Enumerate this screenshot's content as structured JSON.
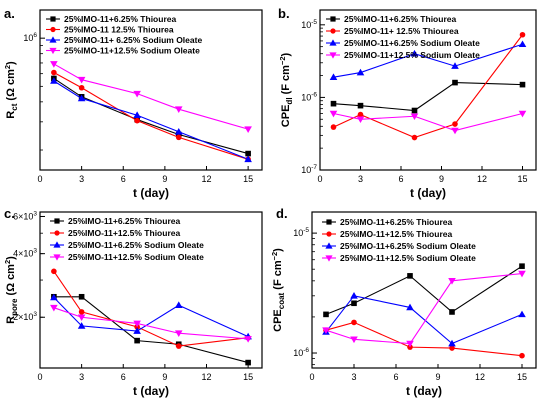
{
  "chart_data": [
    {
      "type": "line",
      "panel_label": "a.",
      "xlabel": "t (day)",
      "ylabel_main": "R",
      "ylabel_sub": "ct",
      "ylabel_rest": " (Ω cm",
      "ylabel_sup": "2",
      "ylabel_end": ")",
      "y_scale": "log",
      "xlim": [
        0,
        16
      ],
      "ylim": [
        150000,
        1500000
      ],
      "x_ticks": [
        0,
        3,
        6,
        9,
        12,
        15
      ],
      "y_tick_labels": [
        {
          "value": 1000000,
          "base": "10",
          "exp": "6"
        }
      ],
      "legend_location": "top-right",
      "series": [
        {
          "name": "25%IMO-11+6.25% Thiourea",
          "color": "#000000",
          "marker": "square",
          "x": [
            1,
            3,
            7,
            10,
            15
          ],
          "y": [
            560000,
            430000,
            310000,
            250000,
            190000
          ]
        },
        {
          "name": "25%IMO-11 12.5% Thiourea",
          "color": "#ff0000",
          "marker": "circle",
          "x": [
            1,
            3,
            7,
            10,
            15
          ],
          "y": [
            610000,
            490000,
            305000,
            240000,
            175000
          ]
        },
        {
          "name": "25%IMO-11+ 6.25% Sodium Oleate",
          "color": "#0000ff",
          "marker": "triangle-up",
          "x": [
            1,
            3,
            7,
            10,
            15
          ],
          "y": [
            540000,
            420000,
            330000,
            260000,
            175000
          ]
        },
        {
          "name": "25%IMO-11+12.5% Sodium Oleate",
          "color": "#ff00ff",
          "marker": "triangle-down",
          "x": [
            1,
            3,
            7,
            10,
            15
          ],
          "y": [
            690000,
            550000,
            450000,
            360000,
            270000
          ]
        }
      ]
    },
    {
      "type": "line",
      "panel_label": "b.",
      "xlabel": "t (day)",
      "ylabel_main": "CPE",
      "ylabel_sub": "dl",
      "ylabel_rest": " (F cm",
      "ylabel_sup": "−2",
      "ylabel_end": ")",
      "y_scale": "log",
      "xlim": [
        0,
        16
      ],
      "ylim": [
        1e-07,
        1.6e-05
      ],
      "x_ticks": [
        0,
        3,
        6,
        9,
        12,
        15
      ],
      "y_tick_labels": [
        {
          "value": 1e-07,
          "base": "10",
          "exp": "-7"
        },
        {
          "value": 1e-06,
          "base": "10",
          "exp": "-6"
        },
        {
          "value": 1e-05,
          "base": "10",
          "exp": "-5"
        }
      ],
      "legend_location": "top-right",
      "series": [
        {
          "name": "25%IMO-11+6.25% Thiourea",
          "color": "#000000",
          "marker": "square",
          "x": [
            1,
            3,
            7,
            10,
            15
          ],
          "y": [
            8.2e-07,
            7.7e-07,
            6.6e-07,
            1.6e-06,
            1.5e-06
          ]
        },
        {
          "name": "25%IMO-11+ 12.5% Thiourea",
          "color": "#ff0000",
          "marker": "circle",
          "x": [
            1,
            3,
            7,
            10,
            15
          ],
          "y": [
            3.9e-07,
            5.8e-07,
            2.8e-07,
            4.3e-07,
            7.3e-06
          ]
        },
        {
          "name": "25%IMO-11+6.25% Sodium Oleate",
          "color": "#0000ff",
          "marker": "triangle-up",
          "x": [
            1,
            3,
            7,
            10,
            15
          ],
          "y": [
            1.9e-06,
            2.2e-06,
            4e-06,
            2.7e-06,
            5.4e-06
          ]
        },
        {
          "name": "25%IMO-11+12.5% Sodium Oleate",
          "color": "#ff00ff",
          "marker": "triangle-down",
          "x": [
            1,
            3,
            7,
            10,
            15
          ],
          "y": [
            6e-07,
            5e-07,
            5.5e-07,
            3.5e-07,
            6e-07
          ]
        }
      ]
    },
    {
      "type": "line",
      "panel_label": "c.",
      "xlabel": "t (day)",
      "ylabel_main": "R",
      "ylabel_sub": "pore",
      "ylabel_rest": " (Ω cm",
      "ylabel_sup": "2",
      "ylabel_end": ")",
      "y_scale": "log",
      "xlim": [
        0,
        16
      ],
      "ylim": [
        1150,
        6300
      ],
      "x_ticks": [
        0,
        3,
        6,
        9,
        12,
        15
      ],
      "y_tick_labels": [
        {
          "value": 2000,
          "base": "2×10",
          "exp": "3"
        },
        {
          "value": 4000,
          "base": "4×10",
          "exp": "3"
        },
        {
          "value": 6000,
          "base": "6×10",
          "exp": "3"
        }
      ],
      "legend_location": "top-right",
      "series": [
        {
          "name": "25%IMO-11+6.25% Thiourea",
          "color": "#000000",
          "marker": "square",
          "x": [
            1,
            3,
            7,
            10,
            15
          ],
          "y": [
            2500,
            2500,
            1550,
            1490,
            1220
          ]
        },
        {
          "name": "25%IMO-11+12.5% Thiourea",
          "color": "#ff0000",
          "marker": "circle",
          "x": [
            1,
            3,
            7,
            10,
            15
          ],
          "y": [
            3300,
            2120,
            1800,
            1460,
            1600
          ]
        },
        {
          "name": "25%IMO-11+6.25% Sodium Oleate",
          "color": "#0000ff",
          "marker": "triangle-up",
          "x": [
            1,
            3,
            7,
            10,
            15
          ],
          "y": [
            2480,
            1820,
            1720,
            2280,
            1620
          ]
        },
        {
          "name": "25%IMO-11+12.5% Sodium Oleate",
          "color": "#ff00ff",
          "marker": "triangle-down",
          "x": [
            1,
            3,
            7,
            10,
            15
          ],
          "y": [
            2220,
            2000,
            1870,
            1680,
            1580
          ]
        }
      ]
    },
    {
      "type": "line",
      "panel_label": "d.",
      "xlabel": "t (day)",
      "ylabel_main": "CPE",
      "ylabel_sub": "coat",
      "ylabel_rest": " (F cm",
      "ylabel_sup": "−2",
      "ylabel_end": ")",
      "y_scale": "log",
      "xlim": [
        0,
        16
      ],
      "ylim": [
        7.5e-07,
        1.5e-05
      ],
      "x_ticks": [
        0,
        3,
        6,
        9,
        12,
        15
      ],
      "y_tick_labels": [
        {
          "value": 1e-06,
          "base": "10",
          "exp": "-6"
        },
        {
          "value": 1e-05,
          "base": "10",
          "exp": "-5"
        }
      ],
      "legend_location": "top-right",
      "series": [
        {
          "name": "25%IMO-11+6.25% Thiourea",
          "color": "#000000",
          "marker": "square",
          "x": [
            1,
            3,
            7,
            10,
            15
          ],
          "y": [
            2.1e-06,
            2.6e-06,
            4.4e-06,
            2.2e-06,
            5.3e-06
          ]
        },
        {
          "name": "25%IMO-11+12.5% Thiourea",
          "color": "#ff0000",
          "marker": "circle",
          "x": [
            1,
            3,
            7,
            10,
            15
          ],
          "y": [
            1.55e-06,
            1.8e-06,
            1.12e-06,
            1.1e-06,
            9.5e-07
          ]
        },
        {
          "name": "25%IMO-11+6.25% Sodium Oleate",
          "color": "#0000ff",
          "marker": "triangle-up",
          "x": [
            1,
            3,
            7,
            10,
            15
          ],
          "y": [
            1.5e-06,
            3e-06,
            2.4e-06,
            1.2e-06,
            2.1e-06
          ]
        },
        {
          "name": "25%IMO-11+12.5% Sodium Oleate",
          "color": "#ff00ff",
          "marker": "triangle-down",
          "x": [
            1,
            3,
            7,
            10,
            15
          ],
          "y": [
            1.55e-06,
            1.3e-06,
            1.2e-06,
            4e-06,
            4.6e-06
          ]
        }
      ]
    }
  ]
}
